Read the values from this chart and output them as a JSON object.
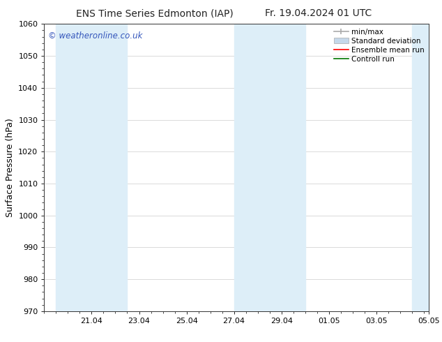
{
  "title_left": "ENS Time Series Edmonton (IAP)",
  "title_right": "Fr. 19.04.2024 01 UTC",
  "ylabel": "Surface Pressure (hPa)",
  "ylim": [
    970,
    1060
  ],
  "yticks": [
    970,
    980,
    990,
    1000,
    1010,
    1020,
    1030,
    1040,
    1050,
    1060
  ],
  "xlim_start": 19.0,
  "xlim_end": 35.21,
  "xtick_labels": [
    "21.04",
    "23.04",
    "25.04",
    "27.04",
    "29.04",
    "01.05",
    "03.05",
    "05.05"
  ],
  "xtick_positions": [
    21.0,
    23.0,
    25.0,
    27.0,
    29.0,
    31.0,
    33.0,
    35.21
  ],
  "background_color": "#ffffff",
  "plot_bg_color": "#ffffff",
  "watermark_text": "© weatheronline.co.uk",
  "watermark_color": "#3355bb",
  "shaded_bands": [
    {
      "x_start": 19.5,
      "x_end": 21.0,
      "color": "#ddeef8"
    },
    {
      "x_start": 21.0,
      "x_end": 22.5,
      "color": "#ddeef8"
    },
    {
      "x_start": 27.0,
      "x_end": 28.5,
      "color": "#ddeef8"
    },
    {
      "x_start": 28.5,
      "x_end": 30.0,
      "color": "#ddeef8"
    },
    {
      "x_start": 34.5,
      "x_end": 35.21,
      "color": "#ddeef8"
    }
  ],
  "legend_items": [
    {
      "label": "min/max",
      "color": "#999999",
      "type": "errorbar"
    },
    {
      "label": "Standard deviation",
      "color": "#c5d8ea",
      "type": "fill"
    },
    {
      "label": "Ensemble mean run",
      "color": "#ff0000",
      "type": "line"
    },
    {
      "label": "Controll run",
      "color": "#007700",
      "type": "line"
    }
  ],
  "title_fontsize": 10,
  "tick_fontsize": 8,
  "ylabel_fontsize": 9,
  "legend_fontsize": 7.5,
  "watermark_fontsize": 8.5
}
